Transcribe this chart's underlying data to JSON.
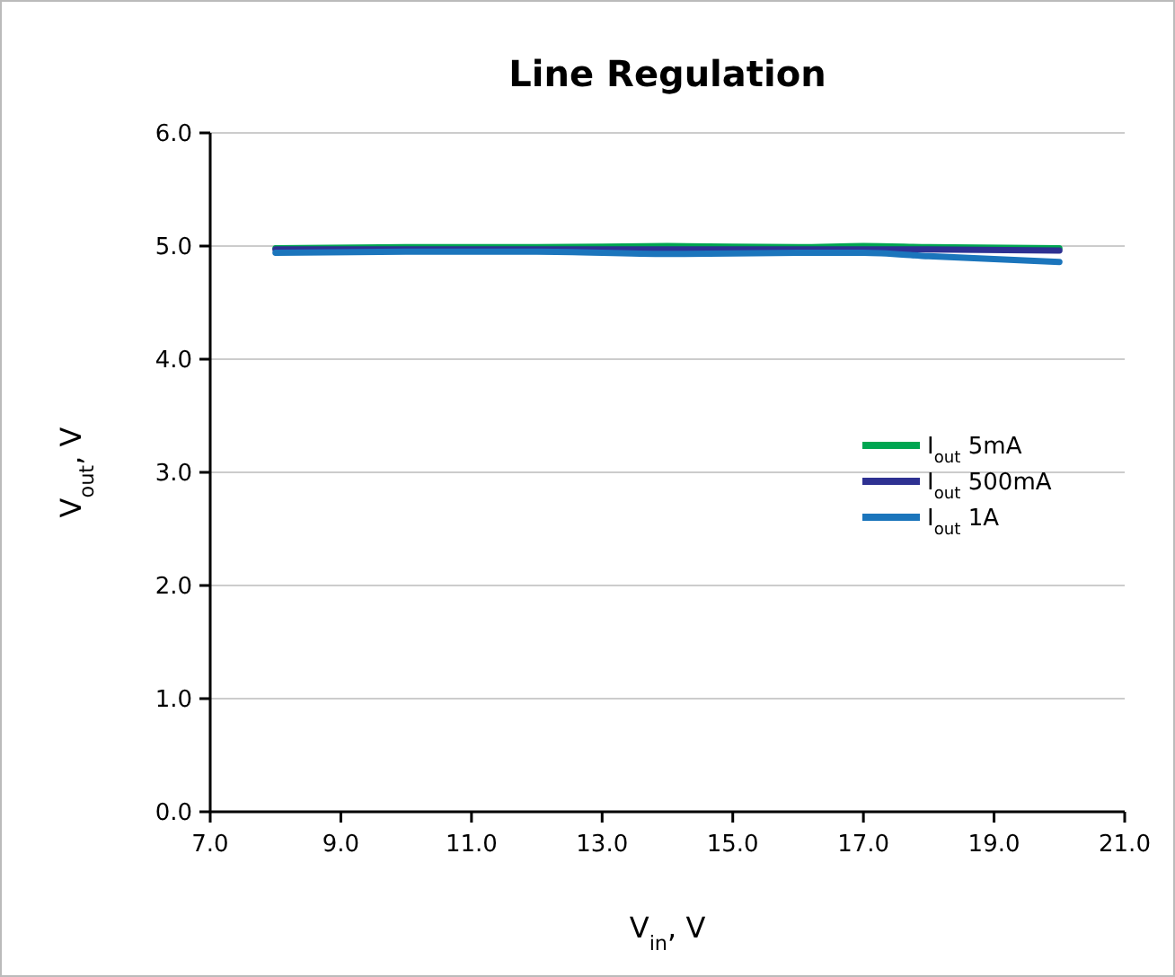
{
  "chart_data": {
    "type": "line",
    "title": "Line Regulation",
    "xlabel": "V$_{in}$, V",
    "ylabel": "V$_{out}$, V",
    "xlim": [
      7,
      21
    ],
    "xticks": [
      {
        "value": 7,
        "label": "7.0"
      },
      {
        "value": 9,
        "label": "9.0"
      },
      {
        "value": 11,
        "label": "11.0"
      },
      {
        "value": 13,
        "label": "13.0"
      },
      {
        "value": 15,
        "label": "15.0"
      },
      {
        "value": 17,
        "label": "17.0"
      },
      {
        "value": 19,
        "label": "19.0"
      },
      {
        "value": 21,
        "label": "21.0"
      }
    ],
    "ylim": [
      0,
      6
    ],
    "yticks": [
      {
        "value": 0,
        "label": "0.0"
      },
      {
        "value": 1,
        "label": "1.0"
      },
      {
        "value": 2,
        "label": "2.0"
      },
      {
        "value": 3,
        "label": "3.0"
      },
      {
        "value": 4,
        "label": "4.0"
      },
      {
        "value": 5,
        "label": "5.0"
      },
      {
        "value": 6,
        "label": "6.0"
      }
    ],
    "grid": "y",
    "legend": "right",
    "marker": "none",
    "line_style": "solid",
    "x": [
      8,
      10,
      12,
      14,
      16,
      17,
      18,
      20
    ],
    "series": [
      {
        "name": "I$_{out}$ 5mA",
        "color": "#00a651",
        "values": [
          4.98,
          4.99,
          4.99,
          5.0,
          4.99,
          5.0,
          4.99,
          4.98
        ]
      },
      {
        "name": "I$_{out}$ 500mA",
        "color": "#2e3192",
        "values": [
          4.97,
          4.97,
          4.97,
          4.97,
          4.97,
          4.97,
          4.97,
          4.96
        ]
      },
      {
        "name": "I$_{out}$ 1A",
        "color": "#1b75bc",
        "values": [
          4.94,
          4.95,
          4.95,
          4.93,
          4.94,
          4.94,
          4.91,
          4.86
        ]
      }
    ]
  }
}
